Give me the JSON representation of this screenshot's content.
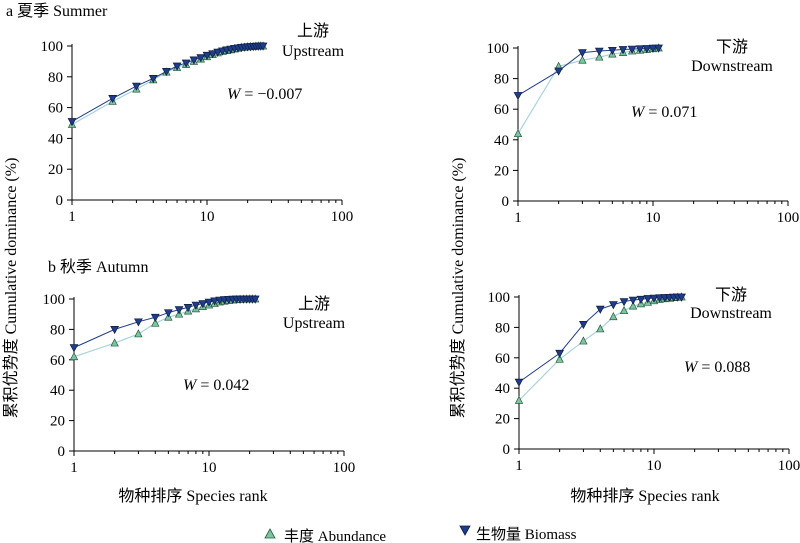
{
  "figure": {
    "xlabel": "物种排序 Species rank",
    "ylabel": "累积优势度 Cumulative dominance (%)",
    "legend": {
      "abundance": "丰度 Abundance",
      "biomass": "生物量 Biomass"
    },
    "colors": {
      "abundance_marker": "#7ac6a2",
      "abundance_line": "#a8d4de",
      "biomass_marker": "#1f3d8a",
      "biomass_line": "#1f3d8a"
    }
  },
  "chart_data": [
    {
      "type": "line",
      "group_label": "a 夏季  Summer",
      "site_cn": "上游",
      "site_en": "Upstream",
      "w_value": "= −0.007",
      "xscale": "log",
      "xlim": [
        1,
        100
      ],
      "ylim": [
        0,
        100
      ],
      "xticks": [
        "1",
        "10",
        "100"
      ],
      "yticks": [
        "0",
        "20",
        "40",
        "60",
        "80",
        "100"
      ],
      "series": [
        {
          "name": "丰度 Abundance",
          "x": [
            1,
            2,
            3,
            4,
            5,
            6,
            7,
            8,
            9,
            10,
            11,
            12,
            13,
            14,
            15,
            16,
            17,
            18,
            19,
            20,
            21,
            22,
            23,
            24,
            25,
            26
          ],
          "y": [
            49,
            64,
            72,
            78,
            83,
            86,
            88,
            90,
            91.5,
            93,
            94.5,
            95.5,
            96.5,
            97,
            97.5,
            98,
            98.5,
            99,
            99.2,
            99.4,
            99.6,
            99.7,
            99.8,
            99.9,
            100,
            100
          ]
        },
        {
          "name": "生物量 Biomass",
          "x": [
            1,
            2,
            3,
            4,
            5,
            6,
            7,
            8,
            9,
            10,
            11,
            12,
            13,
            14,
            15,
            16,
            17,
            18,
            19,
            20,
            21,
            22,
            23,
            24,
            25,
            26
          ],
          "y": [
            51,
            66,
            74,
            79,
            83.5,
            87,
            89,
            91,
            92.5,
            94,
            95,
            96,
            96.8,
            97.5,
            98,
            98.5,
            98.8,
            99.1,
            99.3,
            99.5,
            99.6,
            99.7,
            99.8,
            99.9,
            100,
            100
          ]
        }
      ]
    },
    {
      "type": "line",
      "group_label": "",
      "site_cn": "下游",
      "site_en": "Downstream",
      "w_value": "= 0.071",
      "xscale": "log",
      "xlim": [
        1,
        100
      ],
      "ylim": [
        0,
        100
      ],
      "xticks": [
        "1",
        "10",
        "100"
      ],
      "yticks": [
        "0",
        "20",
        "40",
        "60",
        "80",
        "100"
      ],
      "series": [
        {
          "name": "丰度 Abundance",
          "x": [
            1,
            2,
            3,
            4,
            5,
            6,
            7,
            8,
            9,
            10,
            11
          ],
          "y": [
            44,
            88,
            92,
            94,
            96,
            97,
            98,
            98.5,
            99,
            99.5,
            100
          ]
        },
        {
          "name": "生物量 Biomass",
          "x": [
            1,
            2,
            3,
            4,
            5,
            6,
            7,
            8,
            9,
            10,
            11
          ],
          "y": [
            69,
            85,
            97,
            98,
            98.5,
            99,
            99.3,
            99.5,
            99.7,
            99.9,
            100
          ]
        }
      ]
    },
    {
      "type": "line",
      "group_label": "b 秋季 Autumn",
      "site_cn": "上游",
      "site_en": "Upstream",
      "w_value": "= 0.042",
      "xscale": "log",
      "xlim": [
        1,
        100
      ],
      "ylim": [
        0,
        100
      ],
      "xticks": [
        "1",
        "10",
        "100"
      ],
      "yticks": [
        "0",
        "20",
        "40",
        "60",
        "80",
        "100"
      ],
      "series": [
        {
          "name": "丰度 Abundance",
          "x": [
            1,
            2,
            3,
            4,
            5,
            6,
            7,
            8,
            9,
            10,
            11,
            12,
            13,
            14,
            15,
            16,
            17,
            18,
            19,
            20,
            21,
            22
          ],
          "y": [
            62,
            71,
            77,
            84,
            88,
            90,
            92,
            93.5,
            95,
            96,
            97,
            98,
            98.5,
            99,
            99.3,
            99.5,
            99.7,
            99.8,
            99.9,
            100,
            100,
            100
          ]
        },
        {
          "name": "生物量 Biomass",
          "x": [
            1,
            2,
            3,
            4,
            5,
            6,
            7,
            8,
            9,
            10,
            11,
            12,
            13,
            14,
            15,
            16,
            17,
            18,
            19,
            20,
            21,
            22
          ],
          "y": [
            68,
            80,
            85,
            88,
            91,
            93,
            94.5,
            96,
            97,
            98,
            98.8,
            99.3,
            99.6,
            99.8,
            99.9,
            100,
            100,
            100,
            100,
            100,
            100,
            100
          ]
        }
      ]
    },
    {
      "type": "line",
      "group_label": "",
      "site_cn": "下游",
      "site_en": "Downstream",
      "w_value": "= 0.088",
      "xscale": "log",
      "xlim": [
        1,
        100
      ],
      "ylim": [
        0,
        100
      ],
      "xticks": [
        "1",
        "10",
        "100"
      ],
      "yticks": [
        "0",
        "20",
        "40",
        "60",
        "80",
        "100"
      ],
      "series": [
        {
          "name": "丰度 Abundance",
          "x": [
            1,
            2,
            3,
            4,
            5,
            6,
            7,
            8,
            9,
            10,
            11,
            12,
            13,
            14,
            15,
            16
          ],
          "y": [
            32,
            59,
            71,
            79,
            87,
            91,
            94,
            95.5,
            96.5,
            97.5,
            98.3,
            98.8,
            99.2,
            99.6,
            99.8,
            100
          ]
        },
        {
          "name": "生物量 Biomass",
          "x": [
            1,
            2,
            3,
            4,
            5,
            6,
            7,
            8,
            9,
            10,
            11,
            12,
            13,
            14,
            15,
            16
          ],
          "y": [
            44,
            63,
            82,
            92,
            95,
            97,
            98,
            98.5,
            99,
            99.3,
            99.5,
            99.7,
            99.8,
            99.9,
            100,
            100
          ]
        }
      ]
    }
  ]
}
